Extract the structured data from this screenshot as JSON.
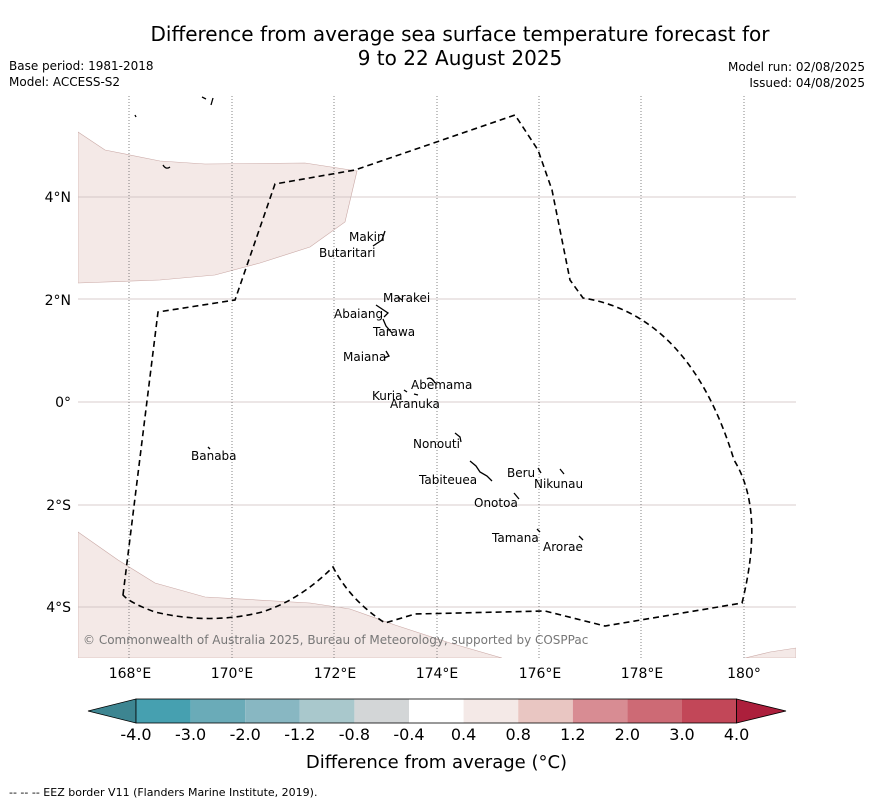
{
  "title_line1": "Difference from average sea surface temperature forecast for",
  "title_line2": "9 to 22 August 2025",
  "base_period": "Base period: 1981-2018",
  "model": "Model: ACCESS-S2",
  "model_run": "Model run: 02/08/2025",
  "issued": "Issued: 04/08/2025",
  "copyright": "© Commonwealth of Australia 2025, Bureau of Meteorology, supported by COSPPac",
  "lon_ticks": [
    "168°E",
    "170°E",
    "172°E",
    "174°E",
    "176°E",
    "178°E",
    "180°"
  ],
  "lat_ticks": [
    "4°N",
    "2°N",
    "0°",
    "2°S",
    "4°S"
  ],
  "islands": [
    "Makin",
    "Butaritari",
    "Marakei",
    "Abaiang",
    "Tarawa",
    "Maiana",
    "Abemama",
    "Kuria",
    "Aranuka",
    "Nonouti",
    "Beru",
    "Nikunau",
    "Tabiteuea",
    "Onotoa",
    "Tamana",
    "Arorae",
    "Banaba"
  ],
  "colorbar": {
    "labels": [
      "-4.0",
      "-3.0",
      "-2.0",
      "-1.2",
      "-0.8",
      "-0.4",
      "0.4",
      "0.8",
      "1.2",
      "2.0",
      "3.0",
      "4.0"
    ],
    "colors": [
      "#46a0b0",
      "#6aabb8",
      "#88b7c2",
      "#a9c8cc",
      "#d3d6d7",
      "#ffffff",
      "#f4e9e7",
      "#e9c6c2",
      "#d88c93",
      "#cd6a75",
      "#c24758"
    ],
    "under_color": "#3d8591",
    "over_color": "#ac1f3c",
    "title": "Difference from average (°C)"
  },
  "footnote": "-- -- -- EEZ border V11 (Flanders Marine Institute, 2019)."
}
